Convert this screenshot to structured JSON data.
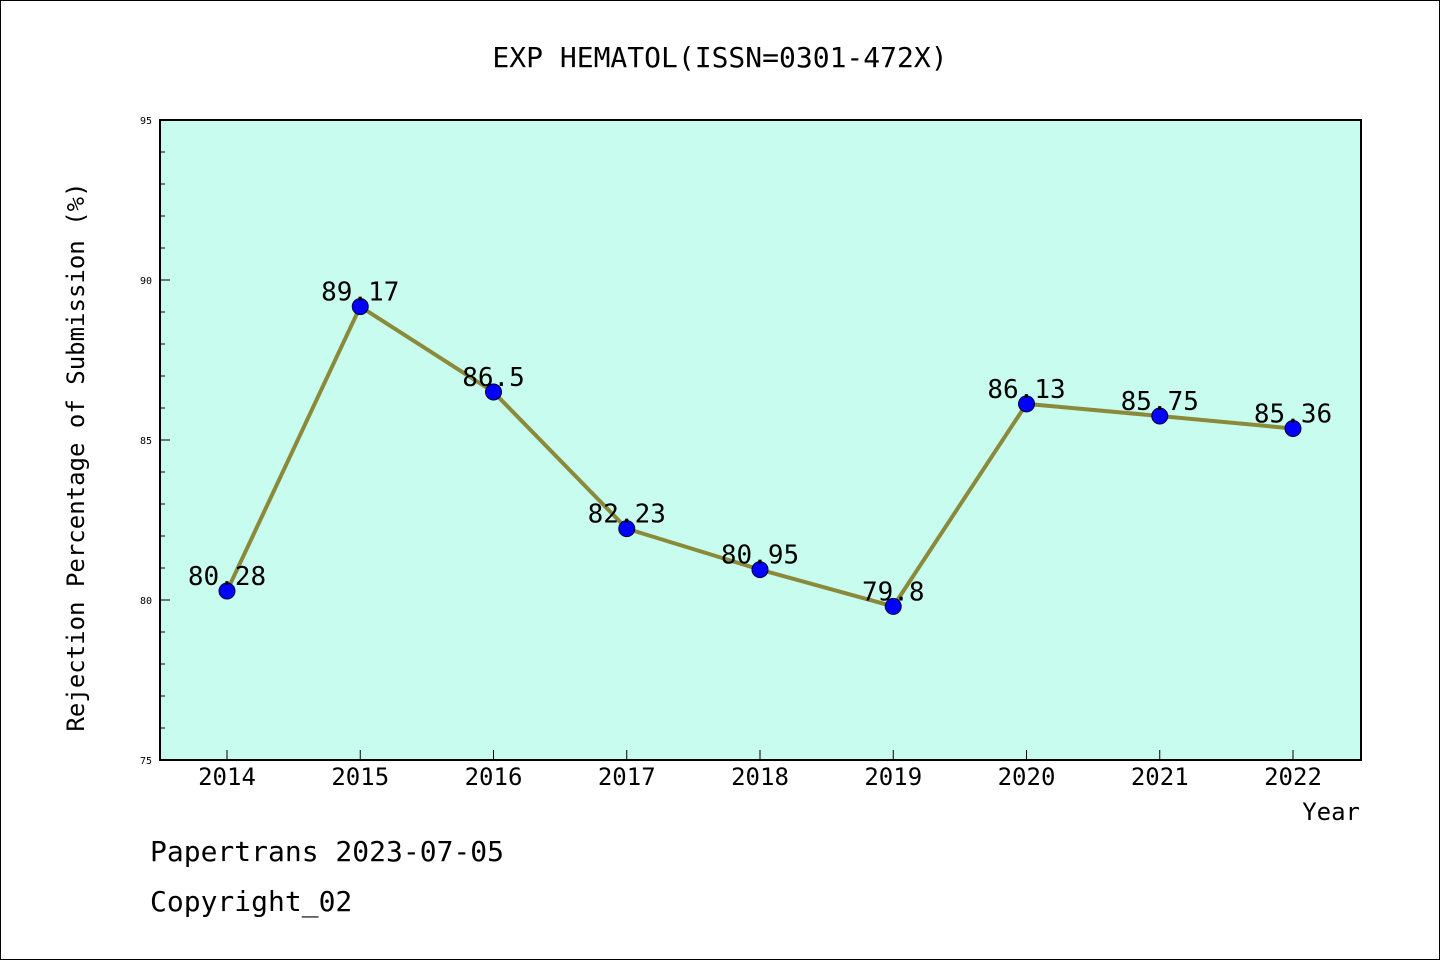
{
  "chart_data": {
    "type": "line",
    "title": "EXP HEMATOL(ISSN=0301-472X)",
    "xlabel": "Year",
    "ylabel": "Rejection Percentage of Submission (%)",
    "categories": [
      "2014",
      "2015",
      "2016",
      "2017",
      "2018",
      "2019",
      "2020",
      "2021",
      "2022"
    ],
    "series": [
      {
        "values": [
          80.28,
          89.17,
          86.5,
          82.23,
          80.95,
          79.8,
          86.13,
          85.75,
          85.36
        ],
        "labels": [
          "80.28",
          "89.17",
          "86.5",
          "82.23",
          "80.95",
          "79.8",
          "86.13",
          "85.75",
          "85.36"
        ]
      }
    ],
    "ylim": [
      75,
      95
    ],
    "yticks": [
      "75",
      "80",
      "85",
      "90",
      "95"
    ],
    "grid": false,
    "colors": {
      "plot_background": "#c8fcee",
      "line": "#8b8a3a",
      "marker": "#0000ff"
    }
  },
  "footer": {
    "line1": "Papertrans 2023-07-05",
    "line2": "Copyright_02"
  }
}
